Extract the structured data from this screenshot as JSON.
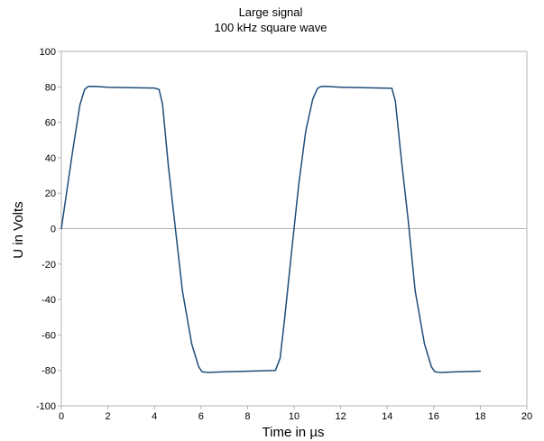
{
  "chart_data": {
    "type": "line",
    "title": "Large signal",
    "subtitle": "100 kHz square wave",
    "xlabel": "Time in µs",
    "ylabel": "U in Volts",
    "xlim": [
      0,
      20
    ],
    "ylim": [
      -100,
      100
    ],
    "xticks": [
      "0",
      "2",
      "4",
      "6",
      "8",
      "10",
      "12",
      "14",
      "16",
      "18",
      "20"
    ],
    "yticks": [
      "100",
      "80",
      "60",
      "40",
      "20",
      "0",
      "-20",
      "-40",
      "-60",
      "-80",
      "-100"
    ],
    "grid": false,
    "zero_line": true,
    "legend": "none",
    "line_color": "#1f4e79",
    "x": [
      0,
      0.2,
      0.5,
      0.8,
      1.0,
      1.15,
      1.4,
      2.0,
      3.0,
      4.0,
      4.2,
      4.35,
      4.6,
      4.9,
      5.2,
      5.6,
      5.9,
      6.05,
      6.3,
      7.0,
      8.0,
      9.2,
      9.4,
      9.6,
      9.9,
      10.2,
      10.5,
      10.8,
      11.0,
      11.15,
      11.4,
      12.0,
      13.0,
      14.2,
      14.35,
      14.6,
      14.9,
      15.2,
      15.6,
      15.9,
      16.05,
      16.3,
      17.0,
      18.0
    ],
    "y": [
      0,
      18,
      45,
      70,
      78.5,
      80.2,
      80.3,
      79.8,
      79.5,
      79.3,
      78.5,
      70,
      35,
      0,
      -35,
      -65,
      -78,
      -80.8,
      -81.2,
      -80.8,
      -80.5,
      -80,
      -73,
      -50,
      -12,
      25,
      55,
      73,
      79,
      80.2,
      80.3,
      79.8,
      79.5,
      79.2,
      72,
      40,
      5,
      -35,
      -65,
      -78,
      -80.8,
      -81.2,
      -80.8,
      -80.5
    ]
  }
}
